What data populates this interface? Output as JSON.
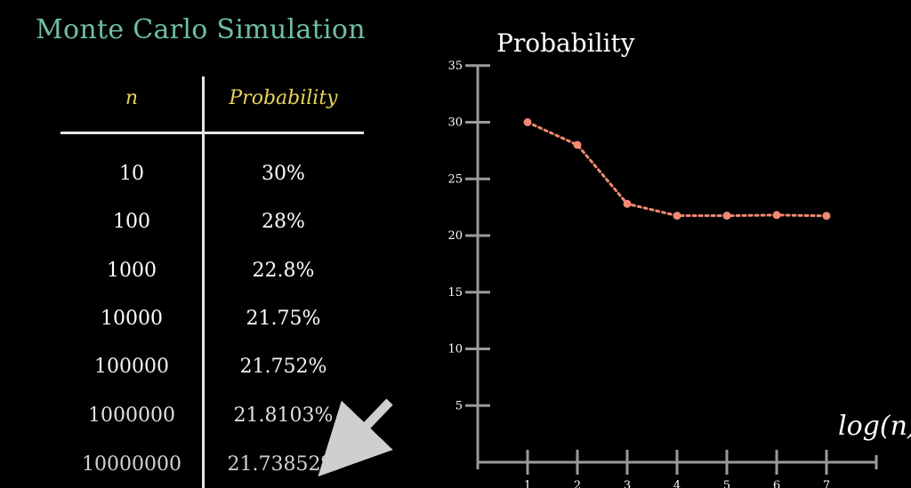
{
  "title": "Monte Carlo Simulation",
  "table": {
    "headers": {
      "n": "n",
      "probability": "Probability"
    },
    "rows": [
      {
        "n": "10",
        "p": "30%"
      },
      {
        "n": "100",
        "p": "28%"
      },
      {
        "n": "1000",
        "p": "22.8%"
      },
      {
        "n": "10000",
        "p": "21.75%"
      },
      {
        "n": "100000",
        "p": "21.752%"
      },
      {
        "n": "1000000",
        "p": "21.8103%"
      },
      {
        "n": "10000000",
        "p": "21.73852%"
      }
    ]
  },
  "colors": {
    "title": "#6fbf9e",
    "header": "#e9d35a",
    "series": "#f08a72",
    "axis": "#9a9a9a",
    "arrow": "#cfcfcf"
  },
  "chart_data": {
    "type": "line",
    "title": "Probability",
    "xlabel": "log(n)",
    "ylabel": "",
    "x": [
      1,
      2,
      3,
      4,
      5,
      6,
      7
    ],
    "xticks": [
      1,
      2,
      3,
      4,
      5,
      6,
      7
    ],
    "yticks": [
      5,
      10,
      15,
      20,
      25,
      30,
      35
    ],
    "ylim": [
      0,
      35
    ],
    "series": [
      {
        "values": [
          30,
          28,
          22.8,
          21.75,
          21.752,
          21.8103,
          21.73852
        ]
      }
    ],
    "grid": false,
    "line_style": "dotted"
  }
}
